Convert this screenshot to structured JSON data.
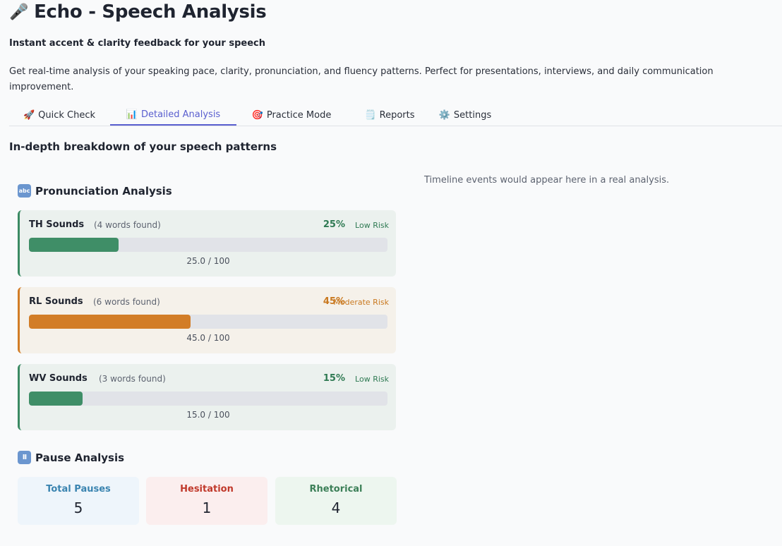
{
  "app": {
    "title": "Echo - Speech Analysis",
    "title_icon": "microphone-icon",
    "subtitle": "Instant accent & clarity feedback for your speech",
    "description": "Get real-time analysis of your speaking pace, clarity, pronunciation, and fluency patterns. Perfect for presentations, interviews, and daily communication improvement."
  },
  "tabs": [
    {
      "icon": "🚀",
      "icon_name": "rocket-icon",
      "label": "Quick Check",
      "active": false
    },
    {
      "icon": "📊",
      "icon_name": "bar-chart-icon",
      "label": "Detailed Analysis",
      "active": true
    },
    {
      "icon": "🎯",
      "icon_name": "target-icon",
      "label": "Practice Mode",
      "active": false
    },
    {
      "icon": "🗒️",
      "icon_name": "notepad-icon",
      "label": "Reports",
      "active": false
    },
    {
      "icon": "⚙️",
      "icon_name": "gear-icon",
      "label": "Settings",
      "active": false
    }
  ],
  "main": {
    "heading": "In-depth breakdown of your speech patterns",
    "timeline_note": "Timeline events would appear here in a real analysis."
  },
  "pronunciation": {
    "title": "Pronunciation Analysis",
    "icon_name": "abc-icon",
    "icon_text": "abc",
    "sounds": [
      {
        "name": "TH Sounds",
        "count": "(4 words found)",
        "percent": "25%",
        "risk": "Low Risk",
        "level": "low",
        "score": 25.0,
        "score_label": "25.0 / 100"
      },
      {
        "name": "RL Sounds",
        "count": "(6 words found)",
        "percent": "45%",
        "risk": "Moderate Risk",
        "level": "moderate",
        "score": 45.0,
        "score_label": "45.0 / 100"
      },
      {
        "name": "WV Sounds",
        "count": "(3 words found)",
        "percent": "15%",
        "risk": "Low Risk",
        "level": "low",
        "score": 15.0,
        "score_label": "15.0 / 100"
      }
    ]
  },
  "pauses": {
    "title": "Pause Analysis",
    "icon_name": "pause-icon",
    "icon_text": "II",
    "stats": {
      "total": {
        "label": "Total Pauses",
        "value": "5"
      },
      "hesitation": {
        "label": "Hesitation",
        "value": "1"
      },
      "rhetorical": {
        "label": "Rhetorical",
        "value": "4"
      }
    }
  },
  "colors": {
    "accent": "#5a5fcf",
    "low_risk": "#3f8e67",
    "moderate_risk": "#d27d27"
  }
}
